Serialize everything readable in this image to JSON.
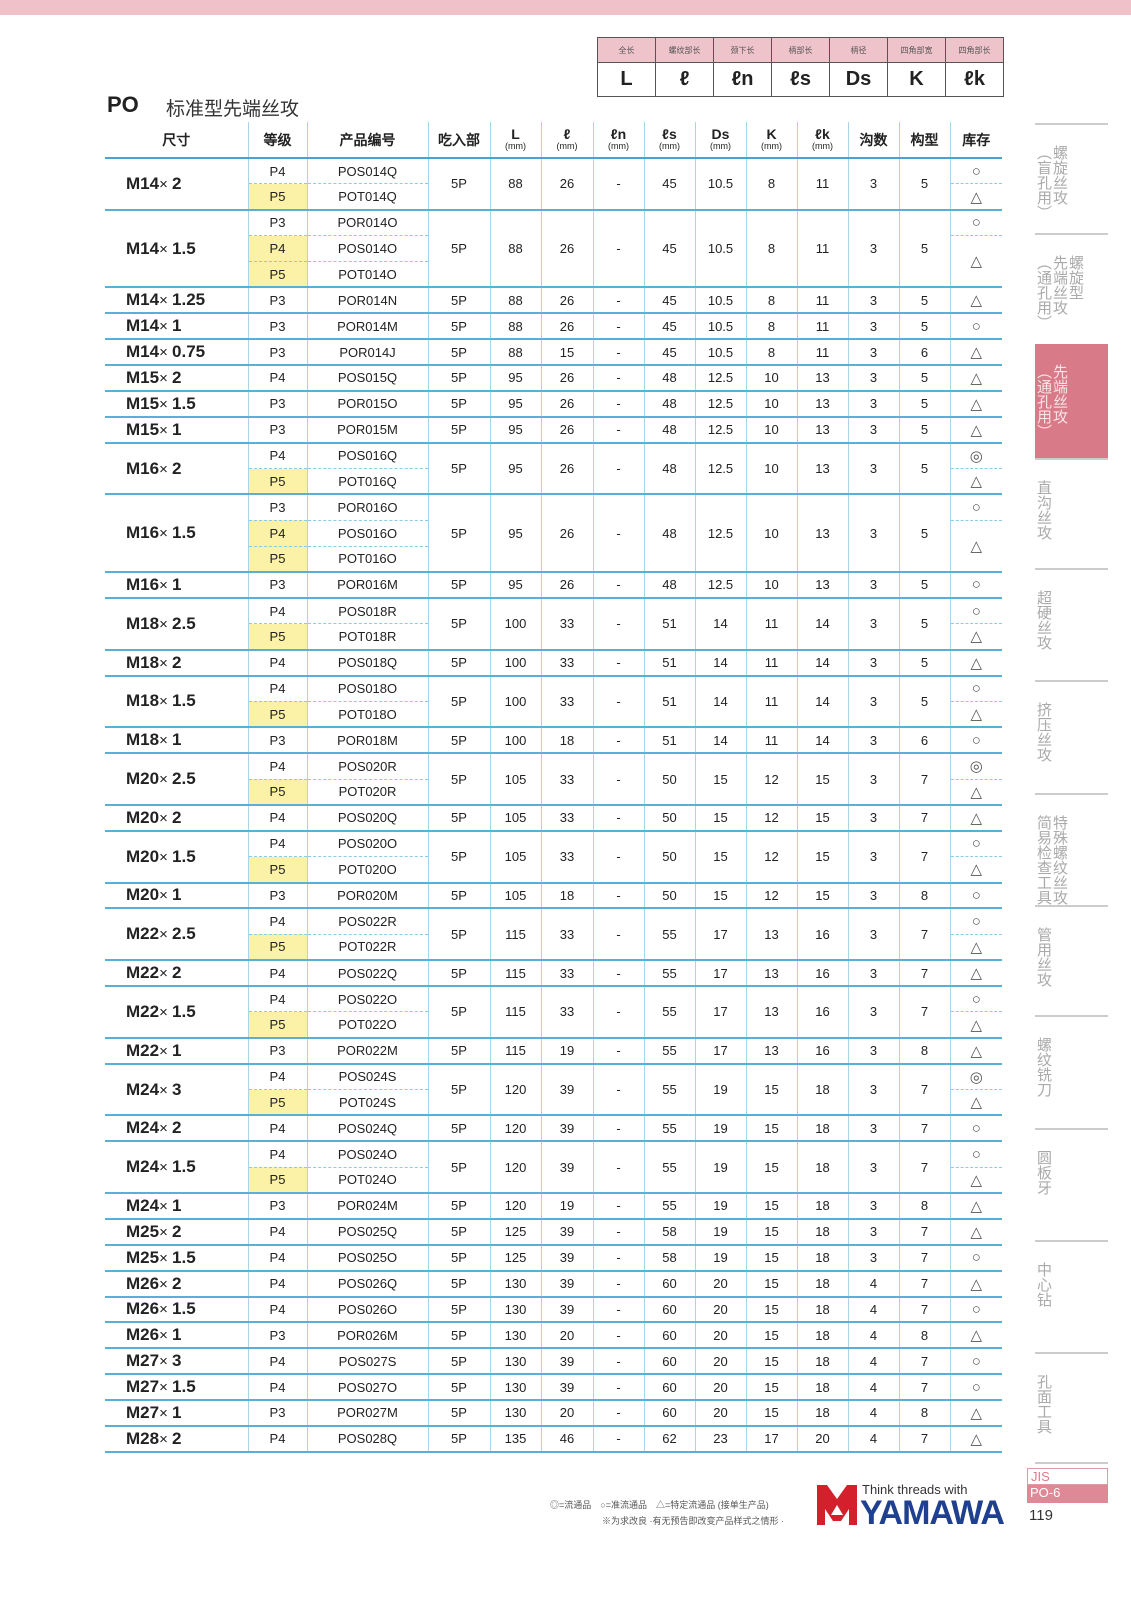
{
  "header": {
    "title": "PO",
    "subtitle": "标准型先端丝攻"
  },
  "legend": {
    "names": [
      "全长",
      "螺纹部长",
      "颈下长",
      "柄部长",
      "柄径",
      "四角部宽",
      "四角部长"
    ],
    "symbols": [
      "L",
      "ℓ",
      "ℓn",
      "ℓs",
      "Ds",
      "K",
      "ℓk"
    ]
  },
  "columns": [
    {
      "label": "尺寸"
    },
    {
      "label": "等级"
    },
    {
      "label": "产品编号"
    },
    {
      "label": "吃入部"
    },
    {
      "label": "L",
      "unit": "(mm)"
    },
    {
      "label": "ℓ",
      "unit": "(mm)"
    },
    {
      "label": "ℓn",
      "unit": "(mm)"
    },
    {
      "label": "ℓs",
      "unit": "(mm)"
    },
    {
      "label": "Ds",
      "unit": "(mm)"
    },
    {
      "label": "K",
      "unit": "(mm)"
    },
    {
      "label": "ℓk",
      "unit": "(mm)"
    },
    {
      "label": "沟数"
    },
    {
      "label": "构型"
    },
    {
      "label": "库存"
    }
  ],
  "colors": {
    "highlight": "#fbf2a7",
    "accent": "#d87a88",
    "rule": "#5aafd6"
  },
  "rows": [
    {
      "size": [
        "M14",
        "2"
      ],
      "subs": [
        [
          "P4",
          "POS014Q",
          0
        ],
        [
          "P5",
          "POT014Q",
          1
        ]
      ],
      "v": [
        "5P",
        "88",
        "26",
        "-",
        "45",
        "10.5",
        "8",
        "11",
        "3",
        "5"
      ],
      "stock": [
        "○",
        "△"
      ]
    },
    {
      "size": [
        "M14",
        "1.5"
      ],
      "subs": [
        [
          "P3",
          "POR014O",
          0
        ],
        [
          "P4",
          "POS014O",
          1
        ],
        [
          "P5",
          "POT014O",
          1
        ]
      ],
      "v": [
        "5P",
        "88",
        "26",
        "-",
        "45",
        "10.5",
        "8",
        "11",
        "3",
        "5"
      ],
      "stock": [
        "○",
        "△"
      ]
    },
    {
      "size": [
        "M14",
        "1.25"
      ],
      "subs": [
        [
          "P3",
          "POR014N",
          0
        ]
      ],
      "v": [
        "5P",
        "88",
        "26",
        "-",
        "45",
        "10.5",
        "8",
        "11",
        "3",
        "5"
      ],
      "stock": [
        "△"
      ]
    },
    {
      "size": [
        "M14",
        "1"
      ],
      "subs": [
        [
          "P3",
          "POR014M",
          0
        ]
      ],
      "v": [
        "5P",
        "88",
        "26",
        "-",
        "45",
        "10.5",
        "8",
        "11",
        "3",
        "5"
      ],
      "stock": [
        "○"
      ]
    },
    {
      "size": [
        "M14",
        "0.75"
      ],
      "subs": [
        [
          "P3",
          "POR014J",
          0
        ]
      ],
      "v": [
        "5P",
        "88",
        "15",
        "-",
        "45",
        "10.5",
        "8",
        "11",
        "3",
        "6"
      ],
      "stock": [
        "△"
      ]
    },
    {
      "size": [
        "M15",
        "2"
      ],
      "subs": [
        [
          "P4",
          "POS015Q",
          0
        ]
      ],
      "v": [
        "5P",
        "95",
        "26",
        "-",
        "48",
        "12.5",
        "10",
        "13",
        "3",
        "5"
      ],
      "stock": [
        "△"
      ]
    },
    {
      "size": [
        "M15",
        "1.5"
      ],
      "subs": [
        [
          "P3",
          "POR015O",
          0
        ]
      ],
      "v": [
        "5P",
        "95",
        "26",
        "-",
        "48",
        "12.5",
        "10",
        "13",
        "3",
        "5"
      ],
      "stock": [
        "△"
      ]
    },
    {
      "size": [
        "M15",
        "1"
      ],
      "subs": [
        [
          "P3",
          "POR015M",
          0
        ]
      ],
      "v": [
        "5P",
        "95",
        "26",
        "-",
        "48",
        "12.5",
        "10",
        "13",
        "3",
        "5"
      ],
      "stock": [
        "△"
      ]
    },
    {
      "size": [
        "M16",
        "2"
      ],
      "subs": [
        [
          "P4",
          "POS016Q",
          0
        ],
        [
          "P5",
          "POT016Q",
          1
        ]
      ],
      "v": [
        "5P",
        "95",
        "26",
        "-",
        "48",
        "12.5",
        "10",
        "13",
        "3",
        "5"
      ],
      "stock": [
        "◎",
        "△"
      ]
    },
    {
      "size": [
        "M16",
        "1.5"
      ],
      "subs": [
        [
          "P3",
          "POR016O",
          0
        ],
        [
          "P4",
          "POS016O",
          1
        ],
        [
          "P5",
          "POT016O",
          1
        ]
      ],
      "v": [
        "5P",
        "95",
        "26",
        "-",
        "48",
        "12.5",
        "10",
        "13",
        "3",
        "5"
      ],
      "stock": [
        "○",
        "△"
      ]
    },
    {
      "size": [
        "M16",
        "1"
      ],
      "subs": [
        [
          "P3",
          "POR016M",
          0
        ]
      ],
      "v": [
        "5P",
        "95",
        "26",
        "-",
        "48",
        "12.5",
        "10",
        "13",
        "3",
        "5"
      ],
      "stock": [
        "○"
      ]
    },
    {
      "size": [
        "M18",
        "2.5"
      ],
      "subs": [
        [
          "P4",
          "POS018R",
          0
        ],
        [
          "P5",
          "POT018R",
          1
        ]
      ],
      "v": [
        "5P",
        "100",
        "33",
        "-",
        "51",
        "14",
        "11",
        "14",
        "3",
        "5"
      ],
      "stock": [
        "○",
        "△"
      ]
    },
    {
      "size": [
        "M18",
        "2"
      ],
      "subs": [
        [
          "P4",
          "POS018Q",
          0
        ]
      ],
      "v": [
        "5P",
        "100",
        "33",
        "-",
        "51",
        "14",
        "11",
        "14",
        "3",
        "5"
      ],
      "stock": [
        "△"
      ]
    },
    {
      "size": [
        "M18",
        "1.5"
      ],
      "subs": [
        [
          "P4",
          "POS018O",
          0
        ],
        [
          "P5",
          "POT018O",
          1
        ]
      ],
      "v": [
        "5P",
        "100",
        "33",
        "-",
        "51",
        "14",
        "11",
        "14",
        "3",
        "5"
      ],
      "stock": [
        "○",
        "△"
      ]
    },
    {
      "size": [
        "M18",
        "1"
      ],
      "subs": [
        [
          "P3",
          "POR018M",
          0
        ]
      ],
      "v": [
        "5P",
        "100",
        "18",
        "-",
        "51",
        "14",
        "11",
        "14",
        "3",
        "6"
      ],
      "stock": [
        "○"
      ]
    },
    {
      "size": [
        "M20",
        "2.5"
      ],
      "subs": [
        [
          "P4",
          "POS020R",
          0
        ],
        [
          "P5",
          "POT020R",
          1
        ]
      ],
      "v": [
        "5P",
        "105",
        "33",
        "-",
        "50",
        "15",
        "12",
        "15",
        "3",
        "7"
      ],
      "stock": [
        "◎",
        "△"
      ]
    },
    {
      "size": [
        "M20",
        "2"
      ],
      "subs": [
        [
          "P4",
          "POS020Q",
          0
        ]
      ],
      "v": [
        "5P",
        "105",
        "33",
        "-",
        "50",
        "15",
        "12",
        "15",
        "3",
        "7"
      ],
      "stock": [
        "△"
      ]
    },
    {
      "size": [
        "M20",
        "1.5"
      ],
      "subs": [
        [
          "P4",
          "POS020O",
          0
        ],
        [
          "P5",
          "POT020O",
          1
        ]
      ],
      "v": [
        "5P",
        "105",
        "33",
        "-",
        "50",
        "15",
        "12",
        "15",
        "3",
        "7"
      ],
      "stock": [
        "○",
        "△"
      ]
    },
    {
      "size": [
        "M20",
        "1"
      ],
      "subs": [
        [
          "P3",
          "POR020M",
          0
        ]
      ],
      "v": [
        "5P",
        "105",
        "18",
        "-",
        "50",
        "15",
        "12",
        "15",
        "3",
        "8"
      ],
      "stock": [
        "○"
      ]
    },
    {
      "size": [
        "M22",
        "2.5"
      ],
      "subs": [
        [
          "P4",
          "POS022R",
          0
        ],
        [
          "P5",
          "POT022R",
          1
        ]
      ],
      "v": [
        "5P",
        "115",
        "33",
        "-",
        "55",
        "17",
        "13",
        "16",
        "3",
        "7"
      ],
      "stock": [
        "○",
        "△"
      ]
    },
    {
      "size": [
        "M22",
        "2"
      ],
      "subs": [
        [
          "P4",
          "POS022Q",
          0
        ]
      ],
      "v": [
        "5P",
        "115",
        "33",
        "-",
        "55",
        "17",
        "13",
        "16",
        "3",
        "7"
      ],
      "stock": [
        "△"
      ]
    },
    {
      "size": [
        "M22",
        "1.5"
      ],
      "subs": [
        [
          "P4",
          "POS022O",
          0
        ],
        [
          "P5",
          "POT022O",
          1
        ]
      ],
      "v": [
        "5P",
        "115",
        "33",
        "-",
        "55",
        "17",
        "13",
        "16",
        "3",
        "7"
      ],
      "stock": [
        "○",
        "△"
      ]
    },
    {
      "size": [
        "M22",
        "1"
      ],
      "subs": [
        [
          "P3",
          "POR022M",
          0
        ]
      ],
      "v": [
        "5P",
        "115",
        "19",
        "-",
        "55",
        "17",
        "13",
        "16",
        "3",
        "8"
      ],
      "stock": [
        "△"
      ]
    },
    {
      "size": [
        "M24",
        "3"
      ],
      "subs": [
        [
          "P4",
          "POS024S",
          0
        ],
        [
          "P5",
          "POT024S",
          1
        ]
      ],
      "v": [
        "5P",
        "120",
        "39",
        "-",
        "55",
        "19",
        "15",
        "18",
        "3",
        "7"
      ],
      "stock": [
        "◎",
        "△"
      ]
    },
    {
      "size": [
        "M24",
        "2"
      ],
      "subs": [
        [
          "P4",
          "POS024Q",
          0
        ]
      ],
      "v": [
        "5P",
        "120",
        "39",
        "-",
        "55",
        "19",
        "15",
        "18",
        "3",
        "7"
      ],
      "stock": [
        "○"
      ]
    },
    {
      "size": [
        "M24",
        "1.5"
      ],
      "subs": [
        [
          "P4",
          "POS024O",
          0
        ],
        [
          "P5",
          "POT024O",
          1
        ]
      ],
      "v": [
        "5P",
        "120",
        "39",
        "-",
        "55",
        "19",
        "15",
        "18",
        "3",
        "7"
      ],
      "stock": [
        "○",
        "△"
      ]
    },
    {
      "size": [
        "M24",
        "1"
      ],
      "subs": [
        [
          "P3",
          "POR024M",
          0
        ]
      ],
      "v": [
        "5P",
        "120",
        "19",
        "-",
        "55",
        "19",
        "15",
        "18",
        "3",
        "8"
      ],
      "stock": [
        "△"
      ]
    },
    {
      "size": [
        "M25",
        "2"
      ],
      "subs": [
        [
          "P4",
          "POS025Q",
          0
        ]
      ],
      "v": [
        "5P",
        "125",
        "39",
        "-",
        "58",
        "19",
        "15",
        "18",
        "3",
        "7"
      ],
      "stock": [
        "△"
      ]
    },
    {
      "size": [
        "M25",
        "1.5"
      ],
      "subs": [
        [
          "P4",
          "POS025O",
          0
        ]
      ],
      "v": [
        "5P",
        "125",
        "39",
        "-",
        "58",
        "19",
        "15",
        "18",
        "3",
        "7"
      ],
      "stock": [
        "○"
      ]
    },
    {
      "size": [
        "M26",
        "2"
      ],
      "subs": [
        [
          "P4",
          "POS026Q",
          0
        ]
      ],
      "v": [
        "5P",
        "130",
        "39",
        "-",
        "60",
        "20",
        "15",
        "18",
        "4",
        "7"
      ],
      "stock": [
        "△"
      ]
    },
    {
      "size": [
        "M26",
        "1.5"
      ],
      "subs": [
        [
          "P4",
          "POS026O",
          0
        ]
      ],
      "v": [
        "5P",
        "130",
        "39",
        "-",
        "60",
        "20",
        "15",
        "18",
        "4",
        "7"
      ],
      "stock": [
        "○"
      ]
    },
    {
      "size": [
        "M26",
        "1"
      ],
      "subs": [
        [
          "P3",
          "POR026M",
          0
        ]
      ],
      "v": [
        "5P",
        "130",
        "20",
        "-",
        "60",
        "20",
        "15",
        "18",
        "4",
        "8"
      ],
      "stock": [
        "△"
      ]
    },
    {
      "size": [
        "M27",
        "3"
      ],
      "subs": [
        [
          "P4",
          "POS027S",
          0
        ]
      ],
      "v": [
        "5P",
        "130",
        "39",
        "-",
        "60",
        "20",
        "15",
        "18",
        "4",
        "7"
      ],
      "stock": [
        "○"
      ]
    },
    {
      "size": [
        "M27",
        "1.5"
      ],
      "subs": [
        [
          "P4",
          "POS027O",
          0
        ]
      ],
      "v": [
        "5P",
        "130",
        "39",
        "-",
        "60",
        "20",
        "15",
        "18",
        "4",
        "7"
      ],
      "stock": [
        "○"
      ]
    },
    {
      "size": [
        "M27",
        "1"
      ],
      "subs": [
        [
          "P3",
          "POR027M",
          0
        ]
      ],
      "v": [
        "5P",
        "130",
        "20",
        "-",
        "60",
        "20",
        "15",
        "18",
        "4",
        "8"
      ],
      "stock": [
        "△"
      ]
    },
    {
      "size": [
        "M28",
        "2"
      ],
      "subs": [
        [
          "P4",
          "POS028Q",
          0
        ]
      ],
      "v": [
        "5P",
        "135",
        "46",
        "-",
        "62",
        "23",
        "17",
        "20",
        "4",
        "7"
      ],
      "stock": [
        "△"
      ]
    }
  ],
  "sidebar": [
    {
      "lines": [
        "螺旋丝攻",
        "（盲孔用）"
      ]
    },
    {
      "lines": [
        "螺旋型",
        "先端丝攻",
        "（通孔用）"
      ]
    },
    {
      "lines": [
        "先端丝攻",
        "（通孔用）"
      ],
      "active": true
    },
    {
      "lines": [
        "直沟丝攻"
      ]
    },
    {
      "lines": [
        "超硬丝攻"
      ]
    },
    {
      "lines": [
        "挤压丝攻"
      ]
    },
    {
      "lines": [
        "特殊螺纹丝攻",
        "简易检查工具"
      ]
    },
    {
      "lines": [
        "管用丝攻"
      ]
    },
    {
      "lines": [
        "螺纹铣刀"
      ]
    },
    {
      "lines": [
        "圆板牙"
      ]
    },
    {
      "lines": [
        "中心钻"
      ]
    },
    {
      "lines": [
        "孔面工具"
      ]
    }
  ],
  "footer": {
    "legend": "◎=流通品　○=准流通品　△=特定流通品 (接单生产品)",
    "note": "※为求改良 ·有无预告即改变产品样式之情形 ·",
    "logo_tagline": "Think threads with",
    "logo_brand": "YAMAWA",
    "standard": "JIS",
    "code": "PO-6",
    "page": "119"
  }
}
